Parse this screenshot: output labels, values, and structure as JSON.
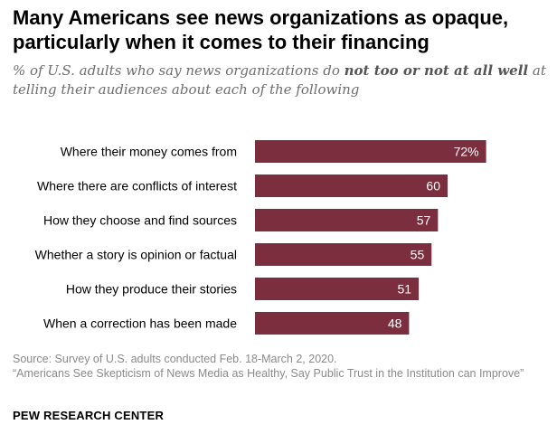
{
  "title": "Many Americans see news organizations as opaque, particularly when it comes to their financing",
  "subtitle_pre": "% of U.S. adults who say news organizations do ",
  "subtitle_emph": "not too or not at all well",
  "subtitle_post": " at telling their audiences about each of the following",
  "chart_data": {
    "type": "bar",
    "orientation": "horizontal",
    "categories": [
      "Where their money comes from",
      "Where there are conflicts of interest",
      "How they choose and find sources",
      "Whether a story is opinion or factual",
      "How they produce their stories",
      "When a correction has been made"
    ],
    "values": [
      72,
      60,
      57,
      55,
      51,
      48
    ],
    "value_labels": [
      "72%",
      "60",
      "57",
      "55",
      "51",
      "48"
    ],
    "xlim": [
      0,
      100
    ],
    "color": "#7b2e3e",
    "grid": false,
    "legend": "none"
  },
  "source": "Source: Survey of U.S. adults conducted Feb. 18-March 2, 2020.",
  "report": "“Americans See Skepticism of News Media as Healthy, Say Public Trust in the Institution can Improve”",
  "brand": "PEW RESEARCH CENTER"
}
